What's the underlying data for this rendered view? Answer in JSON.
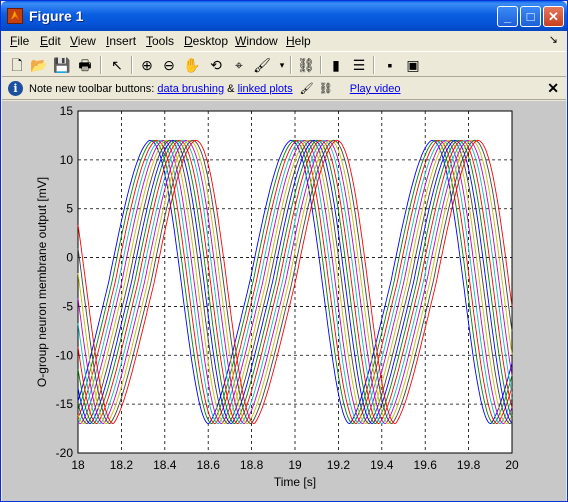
{
  "window": {
    "title": "Figure 1"
  },
  "menu": [
    {
      "label": "File",
      "u": "F",
      "rest": "ile"
    },
    {
      "label": "Edit",
      "u": "E",
      "rest": "dit"
    },
    {
      "label": "View",
      "u": "V",
      "rest": "iew"
    },
    {
      "label": "Insert",
      "u": "I",
      "rest": "nsert"
    },
    {
      "label": "Tools",
      "u": "T",
      "rest": "ools"
    },
    {
      "label": "Desktop",
      "u": "D",
      "rest": "esktop"
    },
    {
      "label": "Window",
      "u": "W",
      "rest": "indow"
    },
    {
      "label": "Help",
      "u": "H",
      "rest": "elp"
    }
  ],
  "infobar": {
    "note": "Note new toolbar buttons:",
    "link_brushing": "data brushing",
    "amp": "&",
    "link_linked": "linked plots",
    "link_video": "Play video"
  },
  "chart_data": {
    "type": "line",
    "title": "",
    "xlabel": "Time [s]",
    "ylabel": "O-group neuron membrane output [mV]",
    "xlim": [
      18,
      20
    ],
    "ylim": [
      -20,
      15
    ],
    "xticks": [
      "18",
      "18.2",
      "18.4",
      "18.6",
      "18.8",
      "19",
      "19.2",
      "19.4",
      "19.6",
      "19.8",
      "20"
    ],
    "yticks": [
      "15",
      "10",
      "5",
      "0",
      "-5",
      "-10",
      "-15",
      "-20"
    ],
    "grid": true,
    "period_s": 0.65,
    "peak_mV": 12,
    "trough_mV": -17,
    "series": [
      {
        "color": "#0000ff",
        "peak_time_s": 18.33
      },
      {
        "color": "#008000",
        "peak_time_s": 18.345
      },
      {
        "color": "#ff0000",
        "peak_time_s": 18.36
      },
      {
        "color": "#00bfbf",
        "peak_time_s": 18.375
      },
      {
        "color": "#bf00bf",
        "peak_time_s": 18.39
      },
      {
        "color": "#bfbf00",
        "peak_time_s": 18.405
      },
      {
        "color": "#404040",
        "peak_time_s": 18.42
      },
      {
        "color": "#0000ff",
        "peak_time_s": 18.435
      },
      {
        "color": "#008000",
        "peak_time_s": 18.45
      },
      {
        "color": "#ff0000",
        "peak_time_s": 18.465
      },
      {
        "color": "#00bfbf",
        "peak_time_s": 18.48
      },
      {
        "color": "#bf00bf",
        "peak_time_s": 18.495
      },
      {
        "color": "#bfbf00",
        "peak_time_s": 18.51
      },
      {
        "color": "#404040",
        "peak_time_s": 18.525
      },
      {
        "color": "#ff0000",
        "peak_time_s": 18.54
      }
    ]
  }
}
